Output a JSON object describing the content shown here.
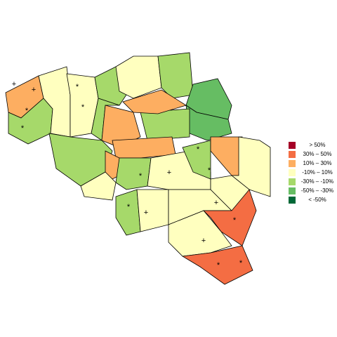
{
  "legend": {
    "items": [
      {
        "label": "> 50%",
        "color": "#a50026"
      },
      {
        "label": "30%  –  50%",
        "color": "#f46d43"
      },
      {
        "label": "10%  –  30%",
        "color": "#fdae61"
      },
      {
        "label": "-10%  –  10%",
        "color": "#ffffbf"
      },
      {
        "label": "-30%  –  -10%",
        "color": "#a6d96a"
      },
      {
        "label": "-50%  –  -30%",
        "color": "#66bd63"
      },
      {
        "label": "< -50%",
        "color": "#006837"
      }
    ]
  },
  "markers": [
    "+",
    "+",
    "*",
    "*",
    "*",
    "*",
    "+",
    "*",
    "*",
    "*",
    "*",
    "+",
    "+",
    "+",
    "*",
    "*",
    "*"
  ]
}
